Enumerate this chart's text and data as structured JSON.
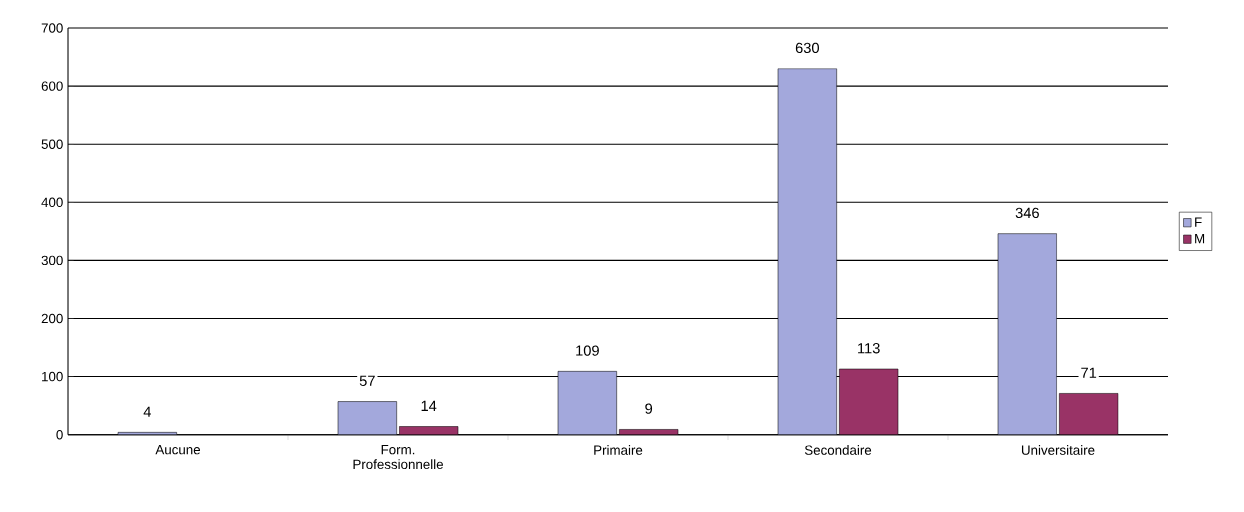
{
  "chart_data": {
    "type": "bar",
    "categories": [
      "Aucune",
      "Form. Professionnelle",
      "Primaire",
      "Secondaire",
      "Universitaire"
    ],
    "series": [
      {
        "name": "F",
        "color": "#a3a8dc",
        "values": [
          4,
          57,
          109,
          630,
          346
        ]
      },
      {
        "name": "M",
        "color": "#993366",
        "values": [
          null,
          14,
          9,
          113,
          71
        ]
      }
    ],
    "ylim": [
      0,
      700
    ],
    "yticks": [
      0,
      100,
      200,
      300,
      400,
      500,
      600,
      700
    ],
    "grid": "y",
    "legend": "right",
    "data_labels": true
  }
}
